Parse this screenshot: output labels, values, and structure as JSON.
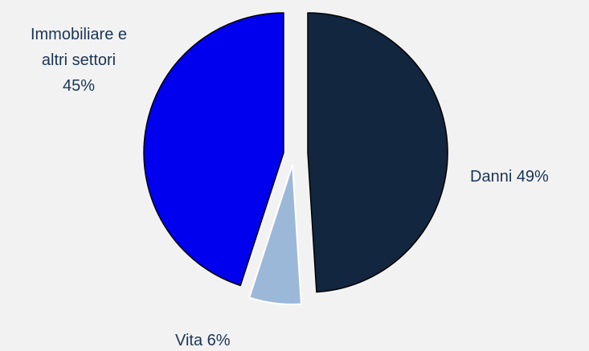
{
  "chart_data": {
    "type": "pie",
    "title": "",
    "slices": [
      {
        "label": "Danni",
        "value": 49,
        "color": "#13263f",
        "label_text": "Danni 49%"
      },
      {
        "label": "Vita",
        "value": 6,
        "color": "#9cb8d9",
        "label_text": "Vita 6%"
      },
      {
        "label": "Immobiliare e altri settori",
        "value": 45,
        "color": "#0000ee",
        "label_lines": [
          "Immobiliare e",
          "altri settori",
          "45%"
        ]
      }
    ],
    "start_angle_deg": 0,
    "direction": "clockwise",
    "exploded": true,
    "label_color": "#1a3556",
    "background": "#f2f2f2"
  }
}
